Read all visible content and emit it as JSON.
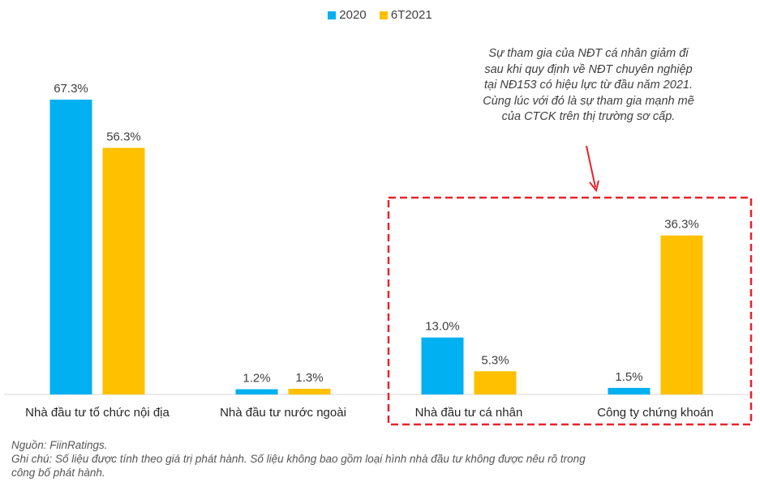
{
  "chart_data": {
    "type": "bar",
    "categories": [
      "Nhà đầu tư tổ chức nội địa",
      "Nhà đầu tư nước ngoài",
      "Nhà đầu tư cá nhân",
      "Công ty chứng khoán"
    ],
    "series": [
      {
        "name": "2020",
        "values": [
          67.3,
          1.2,
          13.0,
          1.5
        ],
        "labels": [
          "67.3%",
          "1.2%",
          "13.0%",
          "1.5%"
        ],
        "color": "#00B0F0"
      },
      {
        "name": "6T2021",
        "values": [
          56.3,
          1.3,
          5.3,
          36.3
        ],
        "labels": [
          "56.3%",
          "1.3%",
          "5.3%",
          "36.3%"
        ],
        "color": "#FFC000"
      }
    ],
    "ylim": [
      0,
      70
    ],
    "xlabel": "",
    "ylabel": "",
    "grid": false,
    "legend_position": "top-center",
    "highlight_color": "#E8232A",
    "highlighted_categories": [
      "Nhà đầu tư cá nhân",
      "Công ty chứng khoán"
    ]
  },
  "annotation": {
    "lines": [
      "Sự tham gia của NĐT cá nhân giảm đi",
      "sau khi quy định về NĐT chuyên nghiệp",
      "tại NĐ153 có hiệu lực từ đầu năm 2021.",
      "Cùng lúc với đó là sự tham gia mạnh mẽ",
      "của CTCK trên thị trường sơ cấp."
    ]
  },
  "footer": {
    "source": "Nguồn: FiinRatings.",
    "note_line1": "Ghi chú: Số liệu được tính theo giá trị phát hành. Số liệu không bao gồm loại hình nhà đầu tư không được nêu rõ trong",
    "note_line2": "công bố phát hành."
  }
}
